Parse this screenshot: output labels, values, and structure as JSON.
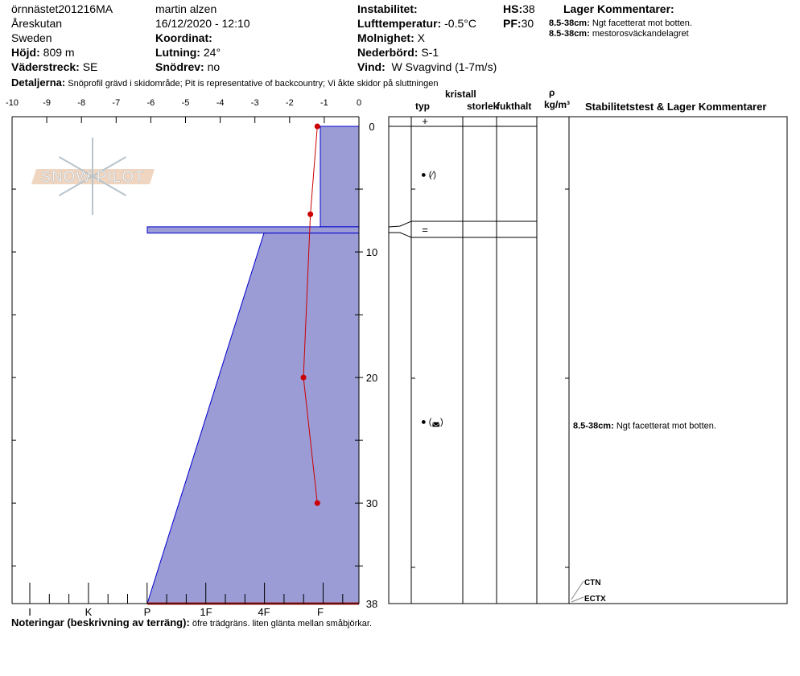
{
  "header": {
    "site": "örnnästet201216MA",
    "location": "Åreskutan",
    "country": "Sweden",
    "hojd_label": "Höjd:",
    "hojd": "809 m",
    "vader_label": "Väderstreck:",
    "vader": "SE",
    "observer": "martin alzen",
    "datetime": "16/12/2020 - 12:10",
    "koord_label": "Koordinat:",
    "lutning_label": "Lutning:",
    "lutning": "24°",
    "snodrev_label": "Snödrev:",
    "snodrev": "no",
    "instab_label": "Instabilitet:",
    "luft_label": "Lufttemperatur:",
    "luft": "-0.5°C",
    "moln_label": "Molnighet:",
    "moln": "X",
    "neder_label": "Nederbörd:",
    "neder": "S-1",
    "vind_label": "Vind:",
    "vind": "W Svagvind (1-7m/s)",
    "hs_label": "HS:",
    "hs": "38",
    "pf_label": "PF:",
    "pf": "30",
    "lager_title": "Lager Kommentarer:",
    "lager": [
      {
        "range": "8.5-38cm:",
        "text": "Ngt facetterat mot botten."
      },
      {
        "range": "8.5-38cm:",
        "text": "mestorosväckandelagret"
      }
    ],
    "detalj_label": "Detaljerna:",
    "detalj": "Snöprofil grävd i skidområde;  Pit is representative of backcountry;  Vi åkte skidor på sluttningen"
  },
  "table_headers": {
    "typ": "typ",
    "kristall": "kristall",
    "storlek": "storlek",
    "fukthalt": "fukthalt",
    "rho": "ρ",
    "density": "kg/m³",
    "stab": "Stabilitetstest & Lager Kommentarer"
  },
  "notes": {
    "label": "Noteringar (beskrivning av terräng):",
    "text": "öfre trädgräns. liten glänta mellan småbjörkar."
  },
  "logo": "SNOW PILOT",
  "colors": {
    "hardness_fill": "#9b9bd6",
    "hardness_stroke": "#0000cc",
    "temp": "#cc0000"
  },
  "chart_data": {
    "type": "snow-profile",
    "temp_axis": {
      "ticks": [
        "-10",
        "-9",
        "-8",
        "-7",
        "-6",
        "-5",
        "-4",
        "-3",
        "-2",
        "-1",
        "0"
      ],
      "range": [
        -10,
        0
      ]
    },
    "depth_axis": {
      "ticks": [
        "0",
        "10",
        "20",
        "30",
        "38"
      ],
      "range": [
        0,
        38
      ]
    },
    "hardness_axis": {
      "ticks": [
        "I",
        "K",
        "P",
        "1F",
        "4F",
        "F"
      ]
    },
    "temperature": [
      {
        "depth": 0,
        "t": -1.2
      },
      {
        "depth": 7,
        "t": -1.4
      },
      {
        "depth": 20,
        "t": -1.6
      },
      {
        "depth": 30,
        "t": -1.2
      }
    ],
    "layers": [
      {
        "top": 0,
        "bottom": 8,
        "hardness_top": "F",
        "hardness_bottom": "F",
        "grain": "+"
      },
      {
        "top": 8,
        "bottom": 8.5,
        "hardness_top": "P",
        "hardness_bottom": "P",
        "grain": "="
      },
      {
        "top": 8.5,
        "bottom": 38,
        "hardness_top": "4F",
        "hardness_bottom": "P",
        "grain": ""
      }
    ],
    "grain_marks": [
      {
        "depth": 3.8,
        "text": "● (⁄)"
      },
      {
        "depth": 23.5,
        "text": "● (◛)"
      }
    ],
    "layer_comment": {
      "depth": 23.5,
      "range": "8.5-38cm:",
      "text": "Ngt facetterat mot botten."
    },
    "stability_tests": [
      {
        "depth": 38,
        "text": "CTN"
      },
      {
        "depth": 38,
        "text": "ECTX"
      }
    ]
  }
}
